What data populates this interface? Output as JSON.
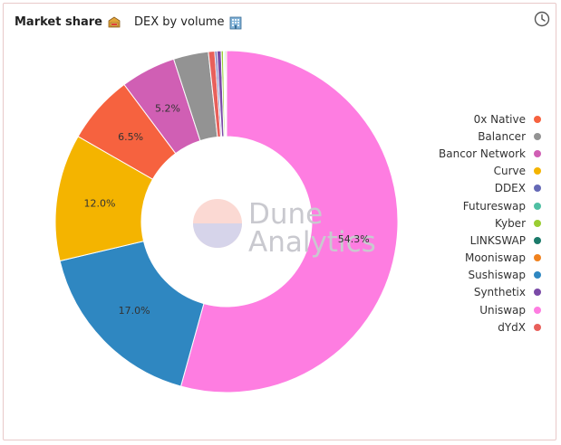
{
  "header": {
    "title": "Market share",
    "subtitle": "DEX by volume"
  },
  "watermark": {
    "line1": "Dune",
    "line2": "Analytics"
  },
  "chart_data": {
    "type": "pie",
    "donut": true,
    "legend_position": "right",
    "slices": [
      {
        "label": "Uniswap",
        "value": 54.3,
        "color": "#fe7de1",
        "show_label": true
      },
      {
        "label": "Sushiswap",
        "value": 17.0,
        "color": "#2f87c1",
        "show_label": true
      },
      {
        "label": "Curve",
        "value": 12.0,
        "color": "#f4b400",
        "show_label": true
      },
      {
        "label": "0x Native",
        "value": 6.5,
        "color": "#f6623f",
        "show_label": true
      },
      {
        "label": "Bancor Network",
        "value": 5.2,
        "color": "#d05fb4",
        "show_label": true
      },
      {
        "label": "Balancer",
        "value": 3.3,
        "color": "#939393",
        "show_label": false
      },
      {
        "label": "dYdX",
        "value": 0.6,
        "color": "#e8605b",
        "show_label": false
      },
      {
        "label": "DDEX",
        "value": 0.2,
        "color": "#6569b6",
        "show_label": false
      },
      {
        "label": "Synthetix",
        "value": 0.4,
        "color": "#7a4aa7",
        "show_label": false
      },
      {
        "label": "Kyber",
        "value": 0.2,
        "color": "#9acd32",
        "show_label": false
      },
      {
        "label": "Futureswap",
        "value": 0.1,
        "color": "#4fbfa3",
        "show_label": false
      },
      {
        "label": "LINKSWAP",
        "value": 0.1,
        "color": "#1b7a6a",
        "show_label": false
      },
      {
        "label": "Mooniswap",
        "value": 0.1,
        "color": "#f0821f",
        "show_label": false
      }
    ],
    "legend": [
      {
        "label": "0x Native",
        "color": "#f6623f"
      },
      {
        "label": "Balancer",
        "color": "#939393"
      },
      {
        "label": "Bancor Network",
        "color": "#d05fb4"
      },
      {
        "label": "Curve",
        "color": "#f4b400"
      },
      {
        "label": "DDEX",
        "color": "#6569b6"
      },
      {
        "label": "Futureswap",
        "color": "#4fbfa3"
      },
      {
        "label": "Kyber",
        "color": "#9acd32"
      },
      {
        "label": "LINKSWAP",
        "color": "#1b7a6a"
      },
      {
        "label": "Mooniswap",
        "color": "#f0821f"
      },
      {
        "label": "Sushiswap",
        "color": "#2f87c1"
      },
      {
        "label": "Synthetix",
        "color": "#7a4aa7"
      },
      {
        "label": "Uniswap",
        "color": "#fe7de1"
      },
      {
        "label": "dYdX",
        "color": "#e8605b"
      }
    ]
  }
}
